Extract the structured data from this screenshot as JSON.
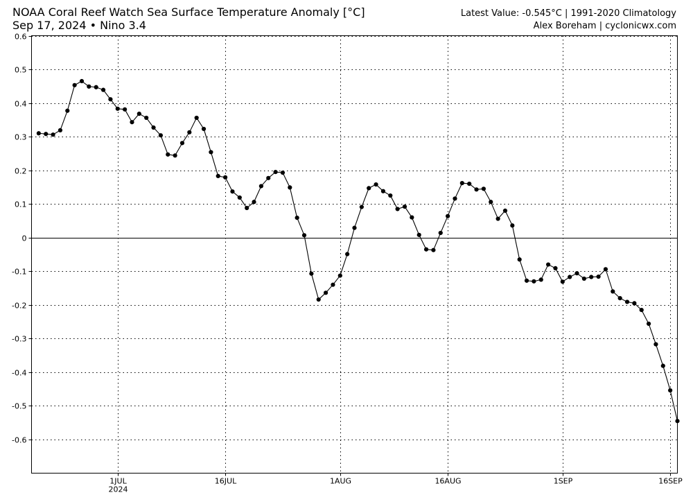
{
  "header": {
    "title_left": "NOAA Coral Reef Watch Sea Surface Temperature Anomaly [°C]",
    "subtitle_left": "Sep 17, 2024 • Nino 3.4",
    "title_right": "Latest Value: -0.545°C | 1991-2020 Climatology",
    "subtitle_right": "Alex Boreham | cyclonicwx.com"
  },
  "chart_data": {
    "type": "line",
    "title": "NOAA Coral Reef Watch Sea Surface Temperature Anomaly [°C]",
    "subtitle": "Sep 17, 2024 • Nino 3.4",
    "ylim": [
      -0.7,
      0.6
    ],
    "x_start": "2024-06-19",
    "x_end": "2024-09-17",
    "y_ticks": [
      "0.6",
      "0.5",
      "0.4",
      "0.3",
      "0.2",
      "0.1",
      "0",
      "-0.1",
      "-0.2",
      "-0.3",
      "-0.4",
      "-0.5",
      "-0.6"
    ],
    "y_tick_values": [
      0.6,
      0.5,
      0.4,
      0.3,
      0.2,
      0.1,
      0,
      -0.1,
      -0.2,
      -0.3,
      -0.4,
      -0.5,
      -0.6
    ],
    "x_ticks": [
      {
        "date": "2024-07-01",
        "label": "1JUL",
        "sublabel": "2024"
      },
      {
        "date": "2024-07-16",
        "label": "16JUL",
        "sublabel": ""
      },
      {
        "date": "2024-08-01",
        "label": "1AUG",
        "sublabel": ""
      },
      {
        "date": "2024-08-16",
        "label": "16AUG",
        "sublabel": ""
      },
      {
        "date": "2024-09-01",
        "label": "1SEP",
        "sublabel": ""
      },
      {
        "date": "2024-09-16",
        "label": "16SEP",
        "sublabel": ""
      }
    ],
    "grid": true,
    "zero_line": true,
    "series": [
      {
        "color": "#000000",
        "x": [
          "2024-06-20",
          "2024-06-21",
          "2024-06-22",
          "2024-06-23",
          "2024-06-24",
          "2024-06-25",
          "2024-06-26",
          "2024-06-27",
          "2024-06-28",
          "2024-06-29",
          "2024-06-30",
          "2024-07-01",
          "2024-07-02",
          "2024-07-03",
          "2024-07-04",
          "2024-07-05",
          "2024-07-06",
          "2024-07-07",
          "2024-07-08",
          "2024-07-09",
          "2024-07-10",
          "2024-07-11",
          "2024-07-12",
          "2024-07-13",
          "2024-07-14",
          "2024-07-15",
          "2024-07-16",
          "2024-07-17",
          "2024-07-18",
          "2024-07-19",
          "2024-07-20",
          "2024-07-21",
          "2024-07-22",
          "2024-07-23",
          "2024-07-24",
          "2024-07-25",
          "2024-07-26",
          "2024-07-27",
          "2024-07-28",
          "2024-07-29",
          "2024-07-30",
          "2024-07-31",
          "2024-08-01",
          "2024-08-02",
          "2024-08-03",
          "2024-08-04",
          "2024-08-05",
          "2024-08-06",
          "2024-08-07",
          "2024-08-08",
          "2024-08-09",
          "2024-08-10",
          "2024-08-11",
          "2024-08-12",
          "2024-08-13",
          "2024-08-14",
          "2024-08-15",
          "2024-08-16",
          "2024-08-17",
          "2024-08-18",
          "2024-08-19",
          "2024-08-20",
          "2024-08-21",
          "2024-08-22",
          "2024-08-23",
          "2024-08-24",
          "2024-08-25",
          "2024-08-26",
          "2024-08-27",
          "2024-08-28",
          "2024-08-29",
          "2024-08-30",
          "2024-08-31",
          "2024-09-01",
          "2024-09-02",
          "2024-09-03",
          "2024-09-04",
          "2024-09-05",
          "2024-09-06",
          "2024-09-07",
          "2024-09-08",
          "2024-09-09",
          "2024-09-10",
          "2024-09-11",
          "2024-09-12",
          "2024-09-13",
          "2024-09-14",
          "2024-09-15",
          "2024-09-16",
          "2024-09-17"
        ],
        "y": [
          0.31,
          0.308,
          0.306,
          0.319,
          0.377,
          0.453,
          0.465,
          0.449,
          0.447,
          0.439,
          0.411,
          0.383,
          0.381,
          0.343,
          0.368,
          0.356,
          0.327,
          0.304,
          0.247,
          0.244,
          0.281,
          0.313,
          0.356,
          0.323,
          0.254,
          0.183,
          0.179,
          0.137,
          0.119,
          0.088,
          0.106,
          0.153,
          0.177,
          0.195,
          0.193,
          0.149,
          0.059,
          0.007,
          -0.107,
          -0.184,
          -0.164,
          -0.14,
          -0.113,
          -0.049,
          0.029,
          0.091,
          0.147,
          0.158,
          0.138,
          0.125,
          0.085,
          0.092,
          0.06,
          0.008,
          -0.035,
          -0.037,
          0.014,
          0.064,
          0.116,
          0.162,
          0.16,
          0.143,
          0.145,
          0.106,
          0.056,
          0.08,
          0.036,
          -0.065,
          -0.128,
          -0.13,
          -0.125,
          -0.08,
          -0.091,
          -0.131,
          -0.117,
          -0.106,
          -0.122,
          -0.117,
          -0.116,
          -0.094,
          -0.16,
          -0.18,
          -0.191,
          -0.195,
          -0.215,
          -0.256,
          -0.317,
          -0.381,
          -0.454,
          -0.545
        ]
      }
    ]
  }
}
